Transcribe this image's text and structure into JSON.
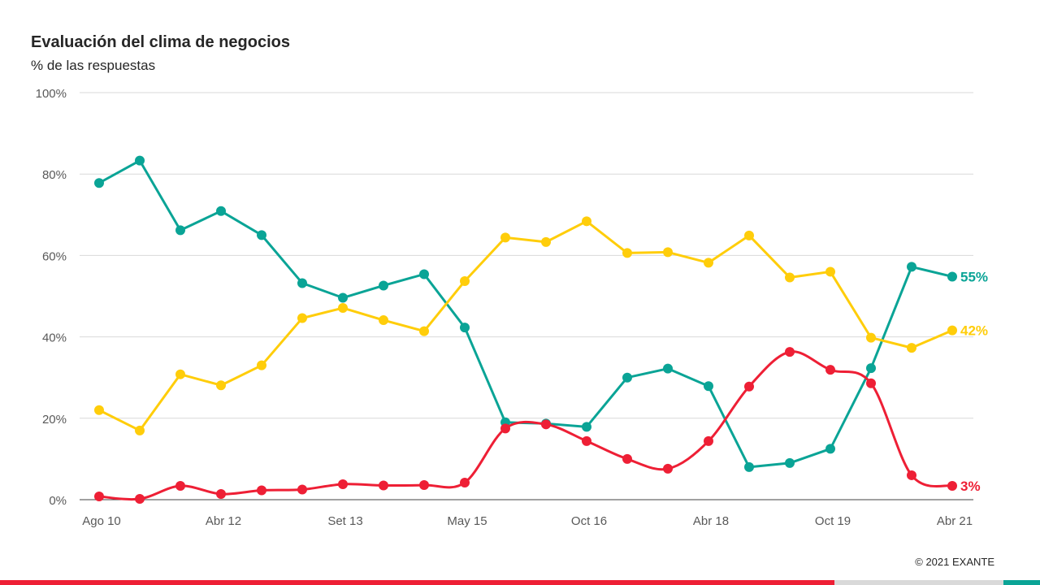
{
  "title": "Evaluación del clima de negocios",
  "subtitle": "% de las respuestas",
  "copyright": "© 2021 EXANTE",
  "colors": {
    "teal": "#0aa496",
    "yellow": "#ffcd0a",
    "red": "#ee1f35",
    "grid": "#d9d9d9",
    "axis": "#404040",
    "text": "#595959",
    "footer_red": "#ee1f35",
    "footer_grey": "#d9d9d9",
    "footer_teal": "#0aa496"
  },
  "chart_data": {
    "type": "line",
    "x_tick_labels": [
      "Ago 10",
      "Abr 12",
      "Set 13",
      "May 15",
      "Oct 16",
      "Abr 18",
      "Oct 19",
      "Abr 21"
    ],
    "y_tick_labels": [
      "0%",
      "20%",
      "40%",
      "60%",
      "80%",
      "100%"
    ],
    "ylim": [
      0,
      100
    ],
    "grid": true,
    "legend": "none",
    "series": [
      {
        "color_key": "teal",
        "smooth": false,
        "end_label": "55%",
        "values": [
          77.8,
          83.3,
          66.2,
          70.9,
          65.0,
          53.2,
          49.6,
          52.6,
          55.4,
          42.3,
          19.0,
          18.7,
          17.9,
          30.0,
          32.2,
          27.9,
          8.0,
          9.0,
          12.5,
          32.3,
          57.2,
          54.8
        ]
      },
      {
        "color_key": "yellow",
        "smooth": false,
        "end_label": "42%",
        "values": [
          22.0,
          17.0,
          30.8,
          28.1,
          33.0,
          44.6,
          47.1,
          44.1,
          41.4,
          53.7,
          64.4,
          63.3,
          68.4,
          60.6,
          60.8,
          58.2,
          64.9,
          54.6,
          56.0,
          39.8,
          37.3,
          41.6
        ]
      },
      {
        "color_key": "red",
        "smooth": true,
        "end_label": "3%",
        "values": [
          0.8,
          0.2,
          3.4,
          1.4,
          2.3,
          2.5,
          3.8,
          3.5,
          3.6,
          4.2,
          17.5,
          18.5,
          14.4,
          10.0,
          7.6,
          14.4,
          27.8,
          36.3,
          31.9,
          28.6,
          6.0,
          3.4
        ]
      }
    ]
  }
}
